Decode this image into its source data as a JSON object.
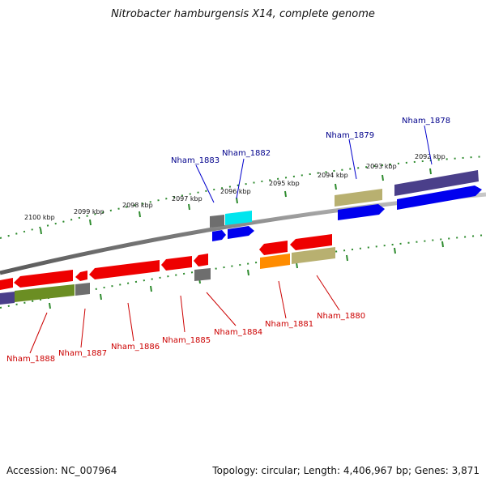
{
  "title": "Nitrobacter hamburgensis X14, complete genome",
  "footer": {
    "accession": "Accession: NC_007964",
    "summary": "Topology: circular; Length: 4,406,967 bp; Genes: 3,871"
  },
  "colors": {
    "backbone": "#8a8a8a",
    "tick": "#2e8b2e",
    "label_forward": "#00008b",
    "label_reverse": "#cc0000",
    "red": "#ee0000",
    "blue": "#0000ee",
    "cyan": "#00e5ee",
    "gray": "#6e6e6e",
    "khaki": "#b8b070",
    "slate": "#4a3f8a",
    "olive": "#6b8e23",
    "orange": "#ff8c00"
  },
  "tick_labels": [
    "2100 kbp",
    "2099 kbp",
    "2098 kbp",
    "2097 kbp",
    "2096 kbp",
    "2095 kbp",
    "2094 kbp",
    "2093 kbp",
    "2092 kbp"
  ],
  "gene_labels": {
    "forward": [
      "Nham_1883",
      "Nham_1882",
      "Nham_1879",
      "Nham_1878"
    ],
    "reverse": [
      "Nham_1888",
      "Nham_1887",
      "Nham_1886",
      "Nham_1885",
      "Nham_1884",
      "Nham_1881",
      "Nham_1880"
    ]
  }
}
